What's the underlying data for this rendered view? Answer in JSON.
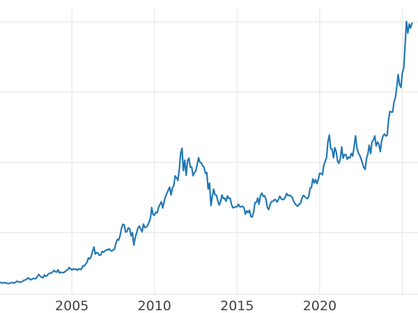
{
  "chart_data": {
    "type": "line",
    "title": "",
    "xlabel": "",
    "ylabel": "",
    "legend_visible": false,
    "grid": true,
    "background_color": "#ffffff",
    "frequency": "monthly",
    "start_month": "2000-09",
    "end_month": "2025-08",
    "x_start_year": 2000.667,
    "x_step_years": 0.0833333,
    "xlim": [
      2000.65,
      2025.95
    ],
    "ylim": [
      130,
      3570
    ],
    "xticks": [
      2005,
      2010,
      2015,
      2020
    ],
    "xtick_labels": [
      "2005",
      "2010",
      "2015",
      "2020"
    ],
    "x_gridline_years": [
      2005,
      2010,
      2015,
      2020,
      2025
    ],
    "y_gridline_values": [
      872,
      1720,
      2568,
      3415
    ],
    "y_tick_labels": [],
    "series_color": "#1f77b4",
    "values": [
      274,
      266,
      266,
      272,
      266,
      262,
      258,
      263,
      267,
      271,
      266,
      273,
      287,
      282,
      275,
      277,
      282,
      297,
      302,
      308,
      327,
      319,
      304,
      311,
      321,
      317,
      320,
      348,
      368,
      347,
      335,
      328,
      362,
      346,
      355,
      376,
      384,
      385,
      398,
      417,
      402,
      396,
      424,
      388,
      394,
      392,
      391,
      402,
      416,
      426,
      452,
      438,
      423,
      436,
      428,
      435,
      419,
      437,
      429,
      434,
      472,
      470,
      494,
      514,
      569,
      556,
      583,
      644,
      700,
      614,
      633,
      624,
      599,
      604,
      647,
      636,
      651,
      665,
      662,
      678,
      660,
      651,
      666,
      673,
      744,
      790,
      784,
      834,
      924,
      972,
      968,
      880,
      886,
      931,
      918,
      834,
      872,
      722,
      815,
      870,
      928,
      952,
      916,
      883,
      976,
      934,
      940,
      956,
      996,
      1040,
      1176,
      1088,
      1083,
      1118,
      1114,
      1180,
      1216,
      1244,
      1170,
      1247,
      1308,
      1346,
      1384,
      1421,
      1327,
      1412,
      1439,
      1557,
      1537,
      1502,
      1630,
      1828,
      1890,
      1622,
      1746,
      1565,
      1738,
      1771,
      1663,
      1665,
      1560,
      1598,
      1616,
      1692,
      1776,
      1720,
      1715,
      1676,
      1661,
      1588,
      1598,
      1400,
      1470,
      1200,
      1314,
      1396,
      1328,
      1324,
      1254,
      1206,
      1244,
      1327,
      1285,
      1289,
      1251,
      1316,
      1286,
      1288,
      1209,
      1173,
      1176,
      1184,
      1186,
      1214,
      1184,
      1184,
      1191,
      1172,
      1096,
      1135,
      1115,
      1142,
      1066,
      1061,
      1118,
      1235,
      1237,
      1290,
      1216,
      1322,
      1351,
      1310,
      1317,
      1272,
      1174,
      1152,
      1212,
      1249,
      1249,
      1268,
      1270,
      1242,
      1270,
      1312,
      1281,
      1271,
      1275,
      1303,
      1345,
      1318,
      1325,
      1315,
      1299,
      1253,
      1224,
      1202,
      1192,
      1215,
      1222,
      1282,
      1321,
      1313,
      1293,
      1283,
      1306,
      1410,
      1414,
      1520,
      1473,
      1513,
      1464,
      1517,
      1589,
      1586,
      1571,
      1687,
      1731,
      1781,
      1976,
      2050,
      1886,
      1879,
      1777,
      1898,
      1848,
      1734,
      1708,
      1769,
      1907,
      1770,
      1814,
      1815,
      1757,
      1784,
      1775,
      1829,
      1797,
      1909,
      2040,
      1897,
      1838,
      1807,
      1766,
      1711,
      1661,
      1634,
      1769,
      1824,
      1928,
      1827,
      1969,
      1990,
      2040,
      1919,
      1965,
      1940,
      1849,
      1984,
      2036,
      2063,
      2040,
      2044,
      2230,
      2336,
      2327,
      2327,
      2448,
      2503,
      2635,
      2780,
      2657,
      2625,
      2798,
      2858,
      3124,
      3420,
      3280,
      3390,
      3340,
      3400
    ]
  },
  "colors": {
    "line": "#1f77b4",
    "grid": "#e7e7e7",
    "tick_label": "#3f3f3f",
    "background": "#ffffff"
  }
}
